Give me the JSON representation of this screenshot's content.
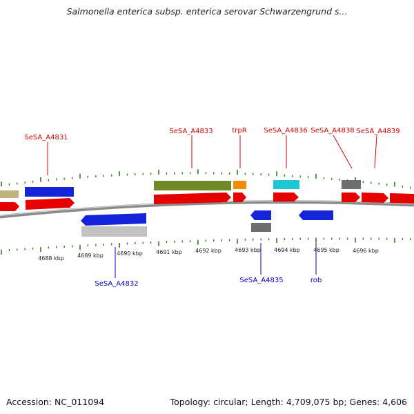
{
  "title": "Salmonella enterica subsp. enterica serovar Schwarzengrund s...",
  "footer": {
    "accession": "Accession: NC_011094",
    "topology": "Topology: circular; Length: 4,709,075 bp; Genes: 4,606"
  },
  "colors": {
    "tick": "#2d7d1e",
    "backbone": "#888888",
    "red": "#e60000",
    "blue": "#1424d8",
    "olive": "#6f8a26",
    "orange": "#f08c00",
    "cyan": "#1ec8d2",
    "darkgray": "#6e6e6e",
    "lightgray": "#c2c2c2",
    "khaki": "#bcb47a"
  },
  "kbp_labels": [
    "4688 kbp",
    "4689 kbp",
    "4690 kbp",
    "4691 kbp",
    "4692 kbp",
    "4693 kbp",
    "4694 kbp",
    "4695 kbp",
    "4696 kbp"
  ],
  "gene_labels_top": [
    "SeSA_A4831",
    "SeSA_A4833",
    "trpR",
    "SeSA_A4836",
    "SeSA_A4838",
    "SeSA_A4839"
  ],
  "gene_labels_bottom": [
    "SeSA_A4832",
    "SeSA_A4835",
    "rob"
  ]
}
